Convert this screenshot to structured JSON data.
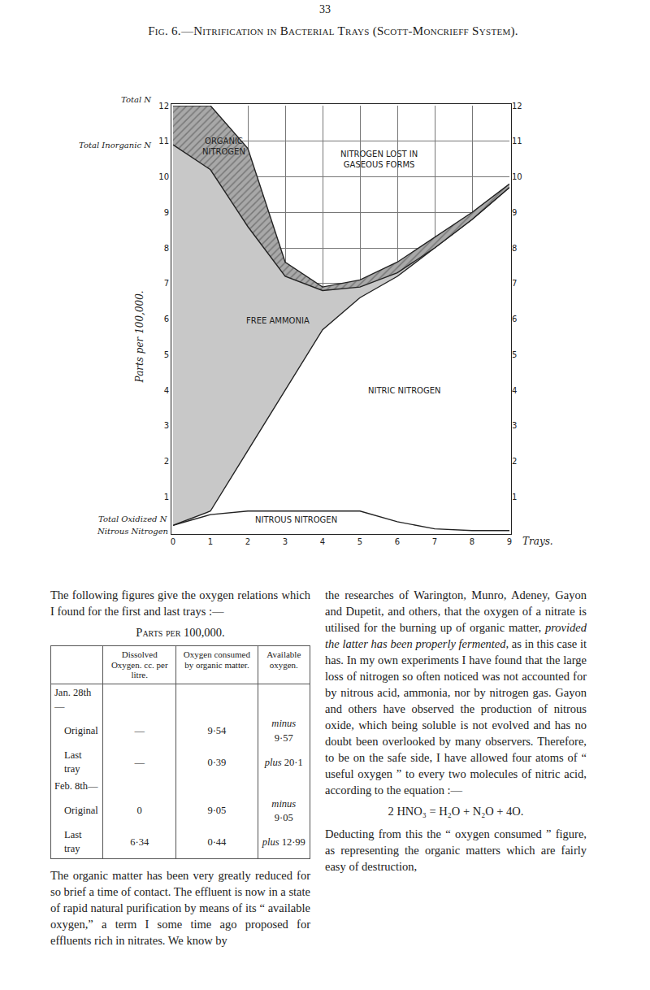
{
  "page_number": "33",
  "chart_data": {
    "type": "line",
    "title": "Fig. 6.—Nitrification in Bacterial Trays (Scott-Moncrieff System).",
    "xlabel": "Trays.",
    "ylabel": "Parts per 100,000.",
    "x": [
      0,
      1,
      2,
      3,
      4,
      5,
      6,
      7,
      8,
      9
    ],
    "series": [
      {
        "name": "Nitrous Nitrogen",
        "color": "#ffffff",
        "values": [
          0.2,
          0.5,
          0.6,
          0.6,
          0.6,
          0.6,
          0.3,
          0.1,
          0.05,
          0.05
        ]
      },
      {
        "name": "Total Oxidized N",
        "color": "#ffffff",
        "values": [
          0.2,
          0.6,
          2.3,
          4.0,
          5.7,
          6.6,
          7.2,
          8.0,
          8.8,
          9.7
        ]
      },
      {
        "name": "Total Inorganic N",
        "color": "#c8c8c8",
        "values": [
          10.9,
          10.2,
          8.6,
          7.2,
          6.8,
          6.9,
          7.3,
          8.0,
          8.8,
          9.7
        ]
      },
      {
        "name": "Total N",
        "color": "#a8a8a8",
        "values": [
          12,
          12,
          10.8,
          7.6,
          6.9,
          7.1,
          7.6,
          8.3,
          9.0,
          9.8
        ]
      }
    ],
    "annotations": [
      {
        "lines": [
          "ORGANIC",
          "NITROGEN"
        ]
      },
      {
        "lines": [
          "NITROGEN LOST IN",
          "GASEOUS FORMS"
        ]
      },
      {
        "lines": [
          "FREE AMMONIA"
        ]
      },
      {
        "lines": [
          "NITRIC NITROGEN"
        ]
      },
      {
        "lines": [
          "NITROUS NITROGEN"
        ]
      }
    ],
    "xlim": [
      0,
      9
    ],
    "ylim": [
      0,
      12
    ],
    "xticks": [
      0,
      1,
      2,
      3,
      4,
      5,
      6,
      7,
      8,
      9
    ],
    "yticks": [
      1,
      2,
      3,
      4,
      5,
      6,
      7,
      8,
      9,
      10,
      11,
      12
    ],
    "grid": true
  },
  "document": {
    "intro": "The following figures give the oxygen relations which I found for the first and last trays :—",
    "table_caption": "Parts per 100,000.",
    "table": {
      "header": [
        "",
        "Dissolved Oxygen. cc. per litre.",
        "Oxygen consumed by organic matter.",
        "Available oxygen."
      ],
      "rows": [
        [
          "Jan. 28th—"
        ],
        [
          "Original",
          "—",
          "9·54",
          "minus 9·57"
        ],
        [
          "Last tray",
          "—",
          "0·39",
          "plus 20·1"
        ],
        [
          "Feb. 8th—"
        ],
        [
          "Original",
          "0",
          "9·05",
          "minus 9·05"
        ],
        [
          "Last tray",
          "6·34",
          "0·44",
          "plus 12·99"
        ]
      ]
    },
    "left_paragraph": "The organic matter has been very greatly reduced for so brief a time of contact. The effluent is now in a state of rapid natural purification by means of its “ available oxygen,” a term I some time ago proposed for effluents rich in nitrates. We know by",
    "right_paragraph": [
      "the researches of Warington, Munro, Adeney, Gayon and Dupetit, and others, that the oxygen of a nitrate is utilised for the burning up of organic matter, ",
      {
        "em": "provided the latter has been properly fermented,"
      },
      " as in this case it has. In my own experiments I have found that the large loss of nitrogen so often noticed was not accounted for by nitrous acid, ammonia, nor by nitrogen gas. Gayon and others have observed the production of nitrous oxide, which being soluble is not evolved and has no doubt been overlooked by many observers. Therefore, to be on the safe side, I have allowed four atoms of “ useful oxygen ” to every two molecules of nitric acid, according to the equation :—"
    ],
    "equation": "2 HNO₃ = H₂O + N₂O + 4O.",
    "closing": "Deducting from this the “ oxygen consumed ” figure, as representing the organic matters which are fairly easy of destruction,"
  }
}
